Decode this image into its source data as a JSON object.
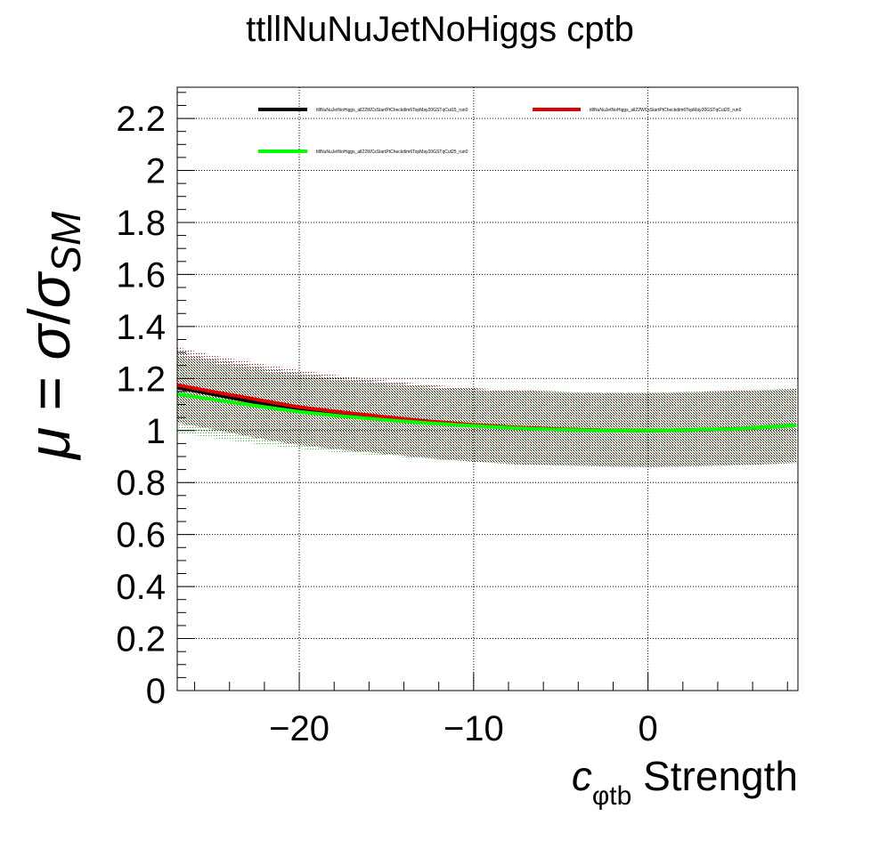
{
  "chart_data": {
    "type": "line",
    "title": "ttllNuNuJetNoHiggs cptb",
    "xlabel": {
      "symbol": "c",
      "subscript": "φtb",
      "suffix": " Strength"
    },
    "ylabel": {
      "mu": "μ",
      "equals": " = ",
      "sigma": "σ",
      "slash": "/",
      "sigma2": "σ",
      "subscript": "SM"
    },
    "xlim": [
      -27.0,
      8.6
    ],
    "ylim": [
      0,
      2.32
    ],
    "xticks": [
      {
        "value": -20,
        "label": "−20"
      },
      {
        "value": -10,
        "label": "−10"
      },
      {
        "value": 0,
        "label": "0"
      }
    ],
    "yticks": [
      {
        "value": 0,
        "label": "0"
      },
      {
        "value": 0.2,
        "label": "0.2"
      },
      {
        "value": 0.4,
        "label": "0.4"
      },
      {
        "value": 0.6,
        "label": "0.6"
      },
      {
        "value": 0.8,
        "label": "0.8"
      },
      {
        "value": 1.0,
        "label": "1"
      },
      {
        "value": 1.2,
        "label": "1.2"
      },
      {
        "value": 1.4,
        "label": "1.4"
      },
      {
        "value": 1.6,
        "label": "1.6"
      },
      {
        "value": 1.8,
        "label": "1.8"
      },
      {
        "value": 2.0,
        "label": "2"
      },
      {
        "value": 2.2,
        "label": "2.2"
      }
    ],
    "grid": true,
    "legend_position": "top",
    "series": [
      {
        "name": "ttllNuNuJetNoHiggs_all22WCsStartPtCheckdim6TopMay20GSTqCut15_run0",
        "color": "#000000",
        "x": [
          -27,
          -25,
          -22.5,
          -20,
          -17.5,
          -15,
          -12.5,
          -10,
          -7.5,
          -5,
          -2.5,
          0,
          2.5,
          5,
          8.5
        ],
        "y": [
          1.165,
          1.14,
          1.108,
          1.08,
          1.06,
          1.045,
          1.03,
          1.02,
          1.01,
          1.004,
          1.001,
          1.0,
          1.002,
          1.006,
          1.02
        ],
        "band_upper": [
          1.3,
          1.275,
          1.245,
          1.22,
          1.2,
          1.185,
          1.17,
          1.16,
          1.152,
          1.148,
          1.145,
          1.145,
          1.148,
          1.152,
          1.16
        ],
        "band_lower": [
          1.03,
          1.005,
          0.972,
          0.945,
          0.925,
          0.91,
          0.893,
          0.88,
          0.87,
          0.865,
          0.862,
          0.86,
          0.862,
          0.866,
          0.875
        ]
      },
      {
        "name": "ttllNuNuJetNoHiggs_all22WCsStartPtCheckdim6TopMay20GSTqCut20_run0",
        "color": "#e00000",
        "x": [
          -27,
          -25,
          -22.5,
          -20,
          -17.5,
          -15,
          -12.5,
          -10,
          -7.5,
          -5,
          -2.5,
          0,
          2.5,
          5,
          8.5
        ],
        "y": [
          1.175,
          1.15,
          1.12,
          1.09,
          1.07,
          1.052,
          1.035,
          1.022,
          1.012,
          1.005,
          1.001,
          1.0,
          1.002,
          1.006,
          1.02
        ],
        "band_upper": [
          1.32,
          1.29,
          1.26,
          1.232,
          1.21,
          1.192,
          1.176,
          1.164,
          1.155,
          1.15,
          1.147,
          1.146,
          1.149,
          1.153,
          1.16
        ],
        "band_lower": [
          1.03,
          1.005,
          0.972,
          0.945,
          0.925,
          0.91,
          0.893,
          0.88,
          0.87,
          0.865,
          0.862,
          0.86,
          0.862,
          0.866,
          0.875
        ]
      },
      {
        "name": "ttllNuNuJetNoHiggs_all22WCsStartPtCheckdim6TopMay20GSTqCut25_run0",
        "color": "#00ff00",
        "x": [
          -27,
          -25,
          -22.5,
          -20,
          -17.5,
          -15,
          -12.5,
          -10,
          -7.5,
          -5,
          -2.5,
          0,
          2.5,
          5,
          8.5
        ],
        "y": [
          1.14,
          1.12,
          1.095,
          1.072,
          1.055,
          1.04,
          1.028,
          1.018,
          1.009,
          1.003,
          1.0,
          1.0,
          1.002,
          1.006,
          1.02
        ],
        "band_upper": [
          1.285,
          1.26,
          1.232,
          1.208,
          1.19,
          1.176,
          1.164,
          1.155,
          1.15,
          1.147,
          1.145,
          1.145,
          1.148,
          1.152,
          1.16
        ],
        "band_lower": [
          0.99,
          0.972,
          0.948,
          0.93,
          0.915,
          0.902,
          0.89,
          0.88,
          0.871,
          0.865,
          0.862,
          0.86,
          0.862,
          0.866,
          0.875
        ]
      }
    ]
  }
}
